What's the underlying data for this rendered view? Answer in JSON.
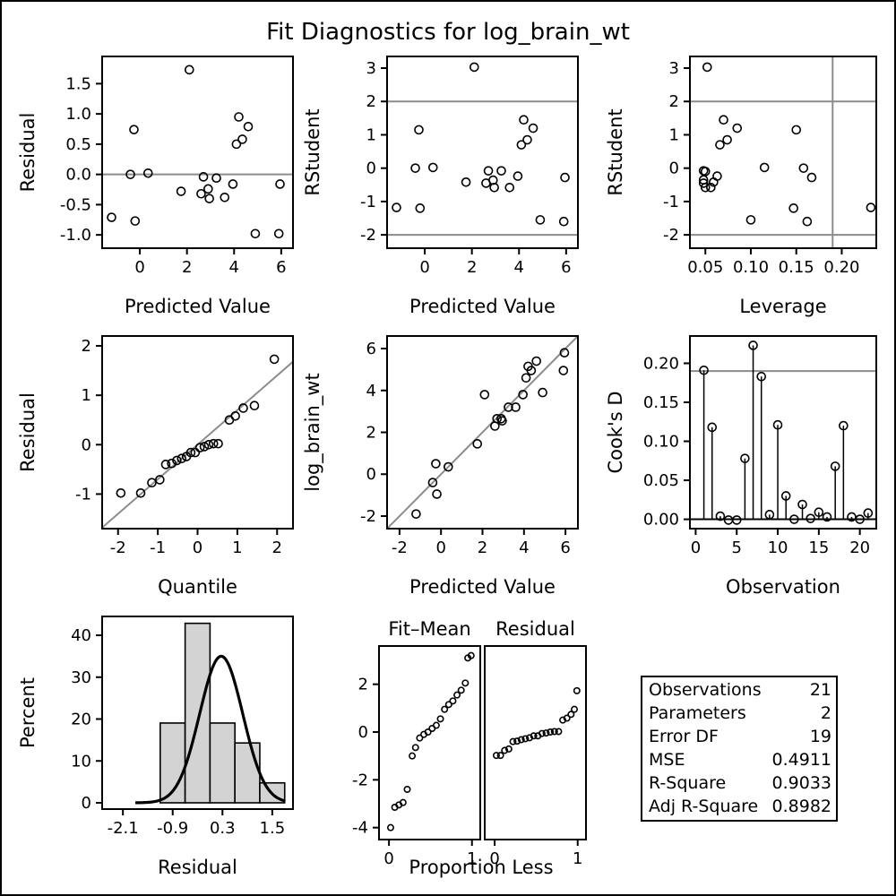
{
  "title": "Fit Diagnostics for log_brain_wt",
  "chart_data": [
    {
      "id": "resid_vs_pred",
      "type": "scatter",
      "xlabel": "Predicted Value",
      "ylabel": "Residual",
      "xlim": [
        -1.6,
        6.5
      ],
      "ylim": [
        -1.22,
        1.95
      ],
      "xticks": [
        0,
        2,
        4,
        6
      ],
      "yticks": [
        -1.0,
        -0.5,
        0.0,
        0.5,
        1.0,
        1.5
      ],
      "ytick_labels": [
        "-1.0",
        "-0.5",
        "0.0",
        "0.5",
        "1.0",
        "1.5"
      ],
      "hlines": [
        0
      ],
      "points": [
        [
          -1.2,
          -0.71
        ],
        [
          -0.4,
          0.0
        ],
        [
          -0.25,
          0.74
        ],
        [
          -0.2,
          -0.77
        ],
        [
          0.35,
          0.02
        ],
        [
          1.75,
          -0.28
        ],
        [
          2.1,
          1.73
        ],
        [
          2.6,
          -0.32
        ],
        [
          2.7,
          -0.04
        ],
        [
          2.9,
          -0.24
        ],
        [
          2.95,
          -0.4
        ],
        [
          3.25,
          -0.06
        ],
        [
          3.6,
          -0.38
        ],
        [
          3.95,
          -0.16
        ],
        [
          4.1,
          0.5
        ],
        [
          4.2,
          0.95
        ],
        [
          4.35,
          0.58
        ],
        [
          4.6,
          0.79
        ],
        [
          4.9,
          -0.98
        ],
        [
          5.9,
          -0.98
        ],
        [
          5.95,
          -0.16
        ]
      ]
    },
    {
      "id": "rstudent_vs_pred",
      "type": "scatter",
      "xlabel": "Predicted Value",
      "ylabel": "RStudent",
      "xlim": [
        -1.6,
        6.5
      ],
      "ylim": [
        -2.4,
        3.35
      ],
      "xticks": [
        0,
        2,
        4,
        6
      ],
      "yticks": [
        -2,
        -1,
        0,
        1,
        2,
        3
      ],
      "hlines": [
        -2,
        2
      ],
      "points": [
        [
          -1.2,
          -1.18
        ],
        [
          -0.4,
          0.0
        ],
        [
          -0.25,
          1.15
        ],
        [
          -0.2,
          -1.2
        ],
        [
          0.35,
          0.02
        ],
        [
          1.75,
          -0.42
        ],
        [
          2.1,
          3.03
        ],
        [
          2.6,
          -0.45
        ],
        [
          2.7,
          -0.08
        ],
        [
          2.9,
          -0.36
        ],
        [
          2.95,
          -0.58
        ],
        [
          3.25,
          -0.08
        ],
        [
          3.6,
          -0.58
        ],
        [
          3.95,
          -0.24
        ],
        [
          4.1,
          0.7
        ],
        [
          4.2,
          1.45
        ],
        [
          4.35,
          0.85
        ],
        [
          4.6,
          1.2
        ],
        [
          4.9,
          -1.55
        ],
        [
          5.9,
          -1.6
        ],
        [
          5.95,
          -0.28
        ]
      ]
    },
    {
      "id": "rstudent_vs_leverage",
      "type": "scatter",
      "xlabel": "Leverage",
      "ylabel": "RStudent",
      "xlim": [
        0.033,
        0.238
      ],
      "ylim": [
        -2.4,
        3.35
      ],
      "xticks": [
        0.05,
        0.1,
        0.15,
        0.2
      ],
      "xtick_labels": [
        "0.05",
        "0.10",
        "0.15",
        "0.20"
      ],
      "yticks": [
        -2,
        -1,
        0,
        1,
        2,
        3
      ],
      "hlines": [
        -2,
        2
      ],
      "vlines": [
        0.19
      ],
      "points": [
        [
          0.048,
          -0.08
        ],
        [
          0.048,
          -0.35
        ],
        [
          0.048,
          -0.45
        ],
        [
          0.05,
          -0.58
        ],
        [
          0.05,
          -0.1
        ],
        [
          0.052,
          3.03
        ],
        [
          0.056,
          -0.58
        ],
        [
          0.059,
          -0.42
        ],
        [
          0.063,
          -0.24
        ],
        [
          0.066,
          0.7
        ],
        [
          0.07,
          1.45
        ],
        [
          0.074,
          0.85
        ],
        [
          0.085,
          1.2
        ],
        [
          0.1,
          -1.55
        ],
        [
          0.115,
          0.02
        ],
        [
          0.147,
          -1.2
        ],
        [
          0.15,
          1.15
        ],
        [
          0.158,
          0.0
        ],
        [
          0.162,
          -1.6
        ],
        [
          0.167,
          -0.28
        ],
        [
          0.232,
          -1.18
        ]
      ]
    },
    {
      "id": "qq_residual",
      "type": "scatter",
      "xlabel": "Quantile",
      "ylabel": "Residual",
      "xlim": [
        -2.4,
        2.4
      ],
      "ylim": [
        -1.7,
        2.2
      ],
      "xticks": [
        -2,
        -1,
        0,
        1,
        2
      ],
      "yticks": [
        -1,
        0,
        1,
        2
      ],
      "reference_line": [
        [
          -2.4,
          -1.68
        ],
        [
          2.4,
          1.68
        ]
      ],
      "points": [
        [
          -1.93,
          -0.98
        ],
        [
          -1.43,
          -0.98
        ],
        [
          -1.15,
          -0.77
        ],
        [
          -0.95,
          -0.71
        ],
        [
          -0.8,
          -0.4
        ],
        [
          -0.65,
          -0.38
        ],
        [
          -0.52,
          -0.32
        ],
        [
          -0.4,
          -0.28
        ],
        [
          -0.28,
          -0.24
        ],
        [
          -0.17,
          -0.16
        ],
        [
          -0.06,
          -0.16
        ],
        [
          0.06,
          -0.06
        ],
        [
          0.17,
          -0.04
        ],
        [
          0.28,
          0.0
        ],
        [
          0.4,
          0.02
        ],
        [
          0.8,
          0.5
        ],
        [
          0.95,
          0.58
        ],
        [
          1.15,
          0.74
        ],
        [
          1.43,
          0.79
        ],
        [
          1.93,
          1.73
        ],
        [
          0.52,
          0.02
        ]
      ]
    },
    {
      "id": "obs_vs_pred",
      "type": "scatter",
      "xlabel": "Predicted Value",
      "ylabel": "log_brain_wt",
      "xlim": [
        -2.6,
        6.6
      ],
      "ylim": [
        -2.6,
        6.6
      ],
      "xticks": [
        -2,
        0,
        2,
        4,
        6
      ],
      "yticks": [
        -2,
        0,
        2,
        4,
        6
      ],
      "reference_line": [
        [
          -2.6,
          -2.6
        ],
        [
          6.6,
          6.6
        ]
      ],
      "points": [
        [
          -1.2,
          -1.9
        ],
        [
          -0.4,
          -0.4
        ],
        [
          -0.25,
          0.5
        ],
        [
          -0.2,
          -0.95
        ],
        [
          0.35,
          0.35
        ],
        [
          1.75,
          1.45
        ],
        [
          2.1,
          3.8
        ],
        [
          2.6,
          2.3
        ],
        [
          2.7,
          2.65
        ],
        [
          2.9,
          2.65
        ],
        [
          2.95,
          2.55
        ],
        [
          3.25,
          3.2
        ],
        [
          3.6,
          3.2
        ],
        [
          3.95,
          3.8
        ],
        [
          4.1,
          4.6
        ],
        [
          4.2,
          5.15
        ],
        [
          4.35,
          4.95
        ],
        [
          4.6,
          5.4
        ],
        [
          4.9,
          3.9
        ],
        [
          5.9,
          4.95
        ],
        [
          5.95,
          5.8
        ]
      ]
    },
    {
      "id": "cooks_d",
      "type": "needle",
      "xlabel": "Observation",
      "ylabel": "Cook's D",
      "xlim": [
        -0.7,
        22.0
      ],
      "ylim": [
        -0.012,
        0.235
      ],
      "xticks": [
        0,
        5,
        10,
        15,
        20
      ],
      "yticks": [
        0.0,
        0.05,
        0.1,
        0.15,
        0.2
      ],
      "ytick_labels": [
        "0.00",
        "0.05",
        "0.10",
        "0.15",
        "0.20"
      ],
      "hlines": [
        0.19
      ],
      "observations": [
        1,
        2,
        3,
        4,
        5,
        6,
        7,
        8,
        9,
        10,
        11,
        12,
        13,
        14,
        15,
        16,
        17,
        18,
        19,
        20,
        21
      ],
      "values": [
        0.191,
        0.118,
        0.004,
        -0.001,
        -0.001,
        0.078,
        0.223,
        0.183,
        0.006,
        0.121,
        0.03,
        0.0,
        0.019,
        0.001,
        0.009,
        0.003,
        0.068,
        0.12,
        0.003,
        0.0,
        0.008
      ]
    },
    {
      "id": "residual_histogram",
      "type": "bar",
      "xlabel": "Residual",
      "ylabel": "Percent",
      "xlim": [
        -2.6,
        2.0
      ],
      "ylim": [
        -1.5,
        44.5
      ],
      "xticks": [
        -2.1,
        -0.9,
        0.3,
        1.5
      ],
      "yticks": [
        0,
        10,
        20,
        30,
        40
      ],
      "bins": [
        [
          -1.2,
          -0.6
        ],
        [
          -0.6,
          0.0
        ],
        [
          0.0,
          0.6
        ],
        [
          0.6,
          1.2
        ],
        [
          1.2,
          1.8
        ]
      ],
      "values": [
        19.05,
        42.86,
        19.05,
        14.29,
        4.76
      ],
      "normal_curve": {
        "mean": 0.27,
        "sd": 0.52,
        "peak_percent": 35.0,
        "range": [
          -1.8,
          1.8
        ]
      }
    },
    {
      "id": "rf_spread",
      "type": "scatter",
      "xlabel": "Proportion Less",
      "ylim": [
        -4.5,
        3.6
      ],
      "yticks": [
        -4,
        -2,
        0,
        2
      ],
      "panels": [
        {
          "label": "Fit–Mean",
          "xlim": [
            -0.12,
            1.1
          ],
          "xticks": [
            0,
            1
          ],
          "points": [
            [
              0.02,
              -4.0
            ],
            [
              0.07,
              -3.15
            ],
            [
              0.12,
              -3.05
            ],
            [
              0.17,
              -2.95
            ],
            [
              0.22,
              -2.4
            ],
            [
              0.28,
              -1.0
            ],
            [
              0.32,
              -0.65
            ],
            [
              0.37,
              -0.25
            ],
            [
              0.42,
              -0.1
            ],
            [
              0.47,
              0.0
            ],
            [
              0.52,
              0.15
            ],
            [
              0.57,
              0.28
            ],
            [
              0.62,
              0.55
            ],
            [
              0.67,
              0.95
            ],
            [
              0.72,
              1.15
            ],
            [
              0.77,
              1.3
            ],
            [
              0.82,
              1.55
            ],
            [
              0.87,
              1.75
            ],
            [
              0.92,
              2.05
            ],
            [
              0.95,
              3.1
            ],
            [
              0.99,
              3.2
            ]
          ]
        },
        {
          "label": "Residual",
          "xlim": [
            -0.12,
            1.1
          ],
          "xticks": [
            0,
            1
          ],
          "points": [
            [
              0.02,
              -0.98
            ],
            [
              0.07,
              -0.98
            ],
            [
              0.12,
              -0.77
            ],
            [
              0.17,
              -0.71
            ],
            [
              0.22,
              -0.4
            ],
            [
              0.27,
              -0.38
            ],
            [
              0.32,
              -0.32
            ],
            [
              0.37,
              -0.28
            ],
            [
              0.42,
              -0.24
            ],
            [
              0.47,
              -0.16
            ],
            [
              0.52,
              -0.16
            ],
            [
              0.57,
              -0.06
            ],
            [
              0.62,
              -0.04
            ],
            [
              0.67,
              0.0
            ],
            [
              0.72,
              0.02
            ],
            [
              0.77,
              0.02
            ],
            [
              0.82,
              0.5
            ],
            [
              0.87,
              0.58
            ],
            [
              0.92,
              0.74
            ],
            [
              0.96,
              0.95
            ],
            [
              0.99,
              1.73
            ]
          ]
        }
      ]
    }
  ],
  "fit_statistics": [
    {
      "label": "Observations",
      "value": "21"
    },
    {
      "label": "Parameters",
      "value": "2"
    },
    {
      "label": "Error DF",
      "value": "19"
    },
    {
      "label": "MSE",
      "value": "0.4911"
    },
    {
      "label": "R-Square",
      "value": "0.9033"
    },
    {
      "label": "Adj R-Square",
      "value": "0.8982"
    }
  ]
}
